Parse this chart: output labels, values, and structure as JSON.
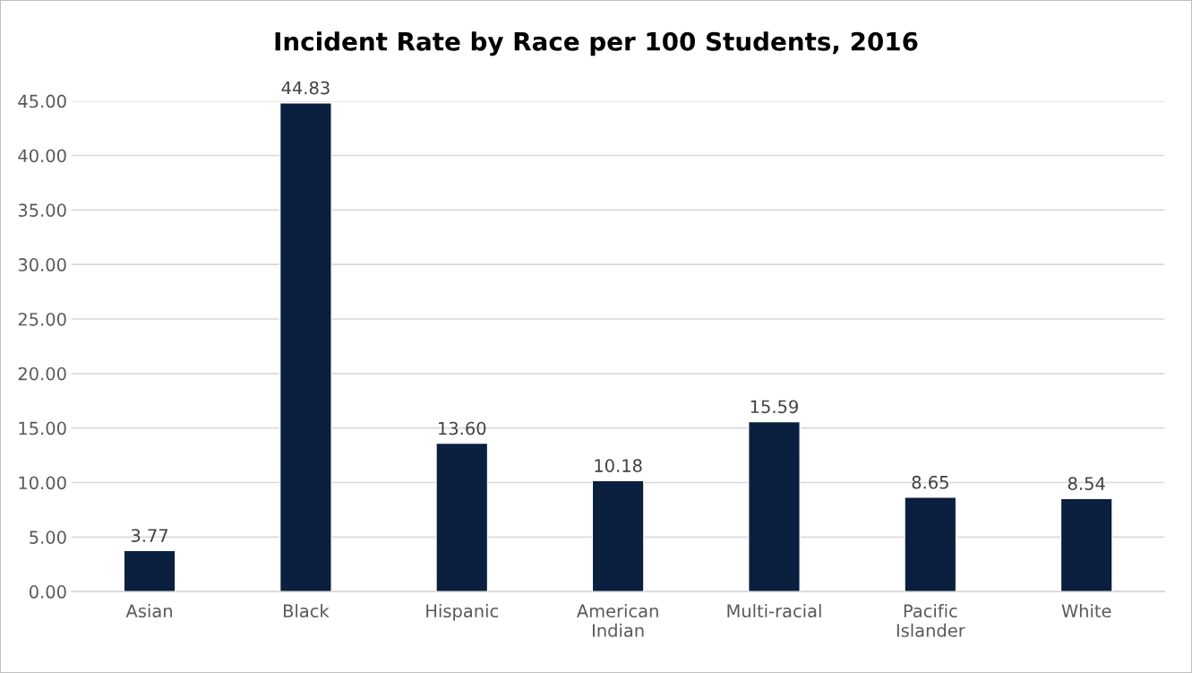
{
  "chart_data": {
    "type": "bar",
    "title": "Incident Rate by Race per 100 Students, 2016",
    "categories": [
      "Asian",
      "Black",
      "Hispanic",
      "American\nIndian",
      "Multi-racial",
      "Pacific\nIslander",
      "White"
    ],
    "values": [
      3.77,
      44.83,
      13.6,
      10.18,
      15.59,
      8.65,
      8.54
    ],
    "value_labels": [
      "3.77",
      "44.83",
      "13.60",
      "10.18",
      "15.59",
      "8.65",
      "8.54"
    ],
    "color": "#0b1f3f",
    "ylim": [
      0,
      45
    ],
    "yticks": [
      {
        "value": 0,
        "label": "0.00"
      },
      {
        "value": 5,
        "label": "5.00"
      },
      {
        "value": 10,
        "label": "10.00"
      },
      {
        "value": 15,
        "label": "15.00"
      },
      {
        "value": 20,
        "label": "20.00"
      },
      {
        "value": 25,
        "label": "25.00"
      },
      {
        "value": 30,
        "label": "30.00"
      },
      {
        "value": 35,
        "label": "35.00"
      },
      {
        "value": 40,
        "label": "40.00"
      },
      {
        "value": 45,
        "label": "45.00"
      }
    ],
    "grid": "y",
    "legend": false
  }
}
